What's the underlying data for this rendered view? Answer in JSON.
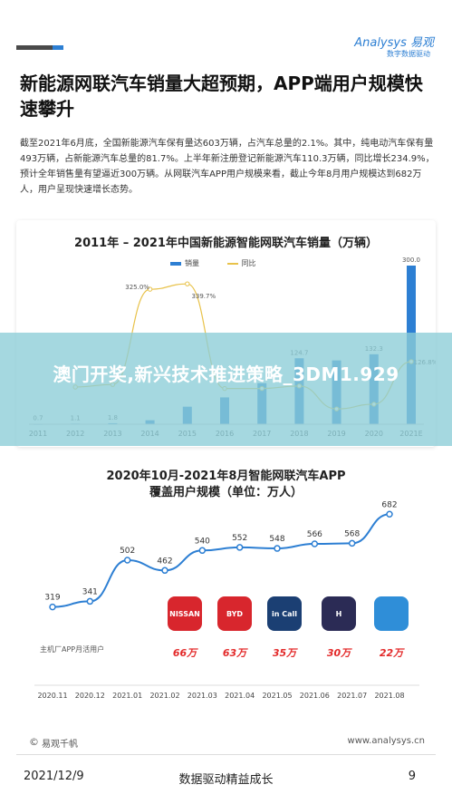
{
  "header": {
    "logo_brand": "Analysys 易观",
    "logo_tag": "数字数据驱动"
  },
  "title": "新能源网联汽车销量大超预期，APP端用户规模快速攀升",
  "paragraph": "截至2021年6月底，全国新能源汽车保有量达603万辆，占汽车总量的2.1%。其中，纯电动汽车保有量493万辆，占新能源汽车总量的81.7%。上半年新注册登记新能源汽车110.3万辆，同比增长234.9%，预计全年销售量有望逼近300万辆。从网联汽车APP用户规模来看，截止今年8月用户规模达到682万人，用户呈现快速增长态势。",
  "banner": "澳门开奖,新兴技术推进策略_3DM1.929",
  "chart_data": [
    {
      "type": "bar",
      "title": "2011年 – 2021年中国新能源智能网联汽车销量（万辆）",
      "legend": [
        "销量",
        "同比"
      ],
      "categories": [
        "2011",
        "2012",
        "2013",
        "2014",
        "2015",
        "2016",
        "2017",
        "2018",
        "2019",
        "2020",
        "2021E"
      ],
      "series": [
        {
          "name": "销量",
          "values": [
            0.7,
            1.1,
            1.8,
            7.5,
            33.1,
            50.7,
            77.7,
            124.7,
            120.6,
            132.3,
            300.0
          ],
          "labels": [
            "0.7",
            "1.1",
            "1.8",
            "",
            "",
            "",
            "",
            "124.7",
            "",
            "132.3",
            "300.0"
          ]
        },
        {
          "name": "同比",
          "values": [
            null,
            57,
            64,
            325.0,
            339.7,
            53,
            53,
            60,
            -3,
            10,
            126.8
          ],
          "labels": [
            "",
            "",
            "",
            "325.0%",
            "339.7%",
            "",
            "",
            "",
            "",
            "",
            "126.8%"
          ]
        }
      ]
    },
    {
      "type": "line",
      "title": "2020年10月-2021年8月智能网联汽车APP",
      "subtitle": "覆盖用户规模（单位：万人）",
      "categories": [
        "2020.11",
        "2020.12",
        "2021.01",
        "2021.02",
        "2021.03",
        "2021.04",
        "2021.05",
        "2021.06",
        "2021.07",
        "2021.08"
      ],
      "values": [
        319,
        341,
        502,
        462,
        540,
        552,
        548,
        566,
        568,
        682
      ],
      "note": "主机厂APP月活用户",
      "brands": [
        {
          "name": "NISSAN",
          "value": "66万",
          "color": "#d8262d"
        },
        {
          "name": "BYD",
          "value": "63万",
          "color": "#d8262d"
        },
        {
          "name": "in Call",
          "value": "35万",
          "color": "#1b3f73"
        },
        {
          "name": "H",
          "value": "30万",
          "color": "#2b2b55"
        },
        {
          "name": "",
          "value": "22万",
          "color": "#2f8ed8"
        }
      ]
    }
  ],
  "source": "易观千帆",
  "site": "www.analysys.cn",
  "footer": {
    "date": "2021/12/9",
    "center": "数据驱动精益成长",
    "page": "9"
  }
}
